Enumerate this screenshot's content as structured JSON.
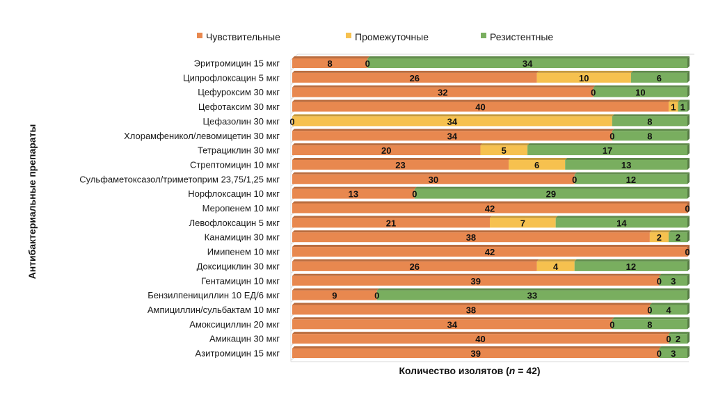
{
  "chart_data": {
    "type": "bar",
    "orientation": "horizontal",
    "stacked": true,
    "xlabel_prefix": "Количество изолятов (",
    "xlabel_n": "n",
    "xlabel_suffix": " = 42)",
    "ylabel": "Антибактериальные препараты",
    "xlim": [
      0,
      42
    ],
    "legend_position": "top",
    "categories": [
      "Эритромицин 15 мкг",
      "Ципрофлоксацин 5 мкг",
      "Цефуроксим 30 мкг",
      "Цефотаксим 30 мкг",
      "Цефазолин 30 мкг",
      "Хлорамфеникол/левомицетин 30 мкг",
      "Тетрациклин 30 мкг",
      "Стрептомицин 10 мкг",
      "Сульфаметоксазол/триметоприм 23,75/1,25 мкг",
      "Норфлоксацин 10 мкг",
      "Меропенем 10 мкг",
      "Левофлоксацин 5 мкг",
      "Канамицин 30 мкг",
      "Имипенем 10 мкг",
      "Доксициклин 30 мкг",
      "Гентамицин 10 мкг",
      "Бензилпенициллин 10 ЕД/6 мкг",
      "Ампициллин/сульбактам 10 мкг",
      "Амоксициллин 20 мкг",
      "Амикацин 30 мкг",
      "Азитромицин 15 мкг"
    ],
    "series": [
      {
        "name": "Чувствительные",
        "color": "#E8884F",
        "values": [
          8,
          26,
          32,
          40,
          0,
          34,
          20,
          23,
          30,
          13,
          42,
          21,
          38,
          42,
          26,
          39,
          9,
          38,
          34,
          40,
          39
        ]
      },
      {
        "name": "Промежуточные",
        "color": "#F6C14F",
        "values": [
          0,
          10,
          0,
          1,
          34,
          0,
          5,
          6,
          0,
          0,
          null,
          7,
          2,
          null,
          4,
          0,
          0,
          0,
          0,
          0,
          0
        ]
      },
      {
        "name": "Резистентные",
        "color": "#79AE5F",
        "values": [
          34,
          6,
          10,
          1,
          8,
          8,
          17,
          13,
          12,
          29,
          0,
          14,
          2,
          0,
          12,
          3,
          33,
          4,
          8,
          2,
          3
        ]
      }
    ]
  }
}
